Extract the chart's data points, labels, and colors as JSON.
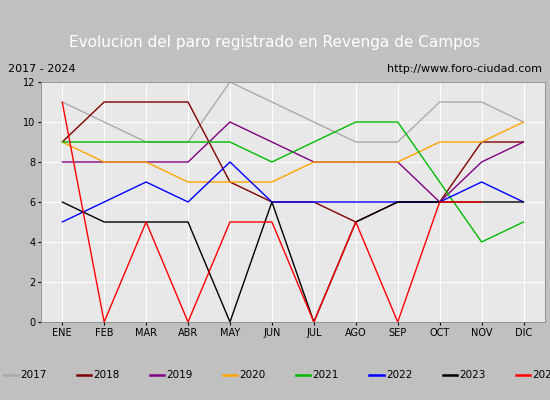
{
  "title": "Evolucion del paro registrado en Revenga de Campos",
  "subtitle_left": "2017 - 2024",
  "subtitle_right": "http://www.foro-ciudad.com",
  "months": [
    "ENE",
    "FEB",
    "MAR",
    "ABR",
    "MAY",
    "JUN",
    "JUL",
    "AGO",
    "SEP",
    "OCT",
    "NOV",
    "DIC"
  ],
  "series": {
    "2017": {
      "color": "#aaaaaa",
      "values": [
        11,
        10,
        9,
        9,
        12,
        11,
        10,
        9,
        9,
        11,
        11,
        10
      ]
    },
    "2018": {
      "color": "#800000",
      "values": [
        9,
        11,
        11,
        11,
        7,
        6,
        6,
        5,
        6,
        6,
        9,
        9
      ]
    },
    "2019": {
      "color": "#800080",
      "values": [
        8,
        8,
        8,
        8,
        10,
        9,
        8,
        8,
        8,
        6,
        8,
        9
      ]
    },
    "2020": {
      "color": "#ffa500",
      "values": [
        9,
        8,
        8,
        7,
        7,
        7,
        8,
        8,
        8,
        9,
        9,
        10
      ]
    },
    "2021": {
      "color": "#00bb00",
      "values": [
        9,
        9,
        9,
        9,
        9,
        8,
        9,
        10,
        10,
        7,
        4,
        5
      ]
    },
    "2022": {
      "color": "#0000ff",
      "values": [
        5,
        6,
        7,
        6,
        8,
        6,
        6,
        6,
        6,
        6,
        7,
        6
      ]
    },
    "2023": {
      "color": "#000000",
      "values": [
        6,
        5,
        5,
        5,
        0,
        6,
        0,
        5,
        6,
        6,
        6,
        6
      ]
    },
    "2024": {
      "color": "#ff0000",
      "values": [
        11,
        0,
        5,
        0,
        5,
        5,
        0,
        5,
        0,
        6,
        6,
        null
      ]
    }
  },
  "ylim": [
    0,
    12
  ],
  "yticks": [
    0,
    2,
    4,
    6,
    8,
    10,
    12
  ],
  "title_bg_color": "#4472c4",
  "title_text_color": "#ffffff",
  "subtitle_bg_color": "#d9d9d9",
  "plot_bg_color": "#e8e8e8",
  "legend_bg_color": "#d9d9d9",
  "grid_color": "#ffffff",
  "title_fontsize": 11,
  "subtitle_fontsize": 8,
  "tick_fontsize": 7,
  "legend_fontsize": 7.5
}
